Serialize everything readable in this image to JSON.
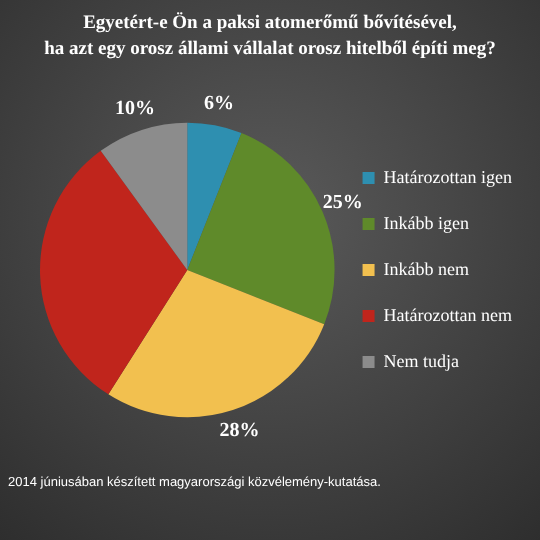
{
  "chart_data": {
    "type": "pie",
    "title": "Egyetért-e Ön a paksi atomerőmű bővítésével,\nha azt egy orosz állami vállalat orosz hitelből építi meg?",
    "categories": [
      "Határozottan igen",
      "Inkább igen",
      "Inkább nem",
      "Határozottan nem",
      "Nem tudja"
    ],
    "values": [
      6,
      25,
      28,
      31,
      10
    ],
    "value_labels": [
      "6%",
      "25%",
      "28%",
      null,
      "10%"
    ],
    "colors": [
      "#2e8fb0",
      "#5f8a2a",
      "#f2c04f",
      "#c0251c",
      "#8c8c8c"
    ],
    "legend": "right",
    "annotations": [
      "2014 júniusában készített magyarországi közvélemény-kutatása."
    ]
  }
}
